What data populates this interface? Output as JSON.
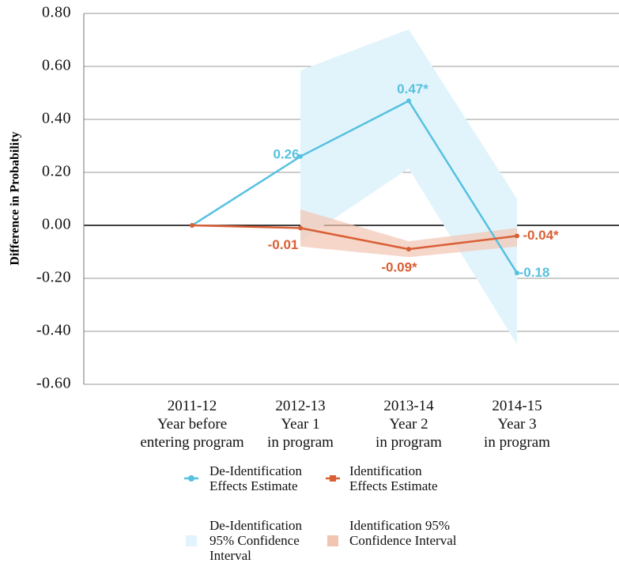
{
  "chart_data": {
    "type": "line",
    "y_label": "Difference in Probability",
    "categories": [
      [
        "2011-12",
        "Year before",
        "entering program"
      ],
      [
        "2012-13",
        "Year 1",
        "in program"
      ],
      [
        "2013-14",
        "Year 2",
        "in program"
      ],
      [
        "2014-15",
        "Year 3",
        "in program"
      ]
    ],
    "ylim": [
      -0.6,
      0.8
    ],
    "yticks": [
      {
        "value": -0.6,
        "label": "-0.60"
      },
      {
        "value": -0.4,
        "label": "-0.40"
      },
      {
        "value": -0.2,
        "label": "-0.20"
      },
      {
        "value": 0,
        "label": "0.00"
      },
      {
        "value": 0.2,
        "label": "0.20"
      },
      {
        "value": 0.4,
        "label": "0.40"
      },
      {
        "value": 0.6,
        "label": "0.60"
      },
      {
        "value": 0.8,
        "label": "0.80"
      }
    ],
    "grid": true,
    "bands": [
      {
        "name": "De-Identification 95% Confidence Interval",
        "color": "#e2f4fb",
        "upper": [
          null,
          0.585,
          0.74,
          0.1
        ],
        "lower": [
          null,
          -0.06,
          0.215,
          -0.45
        ]
      },
      {
        "name": "Identification 95% Confidence Interval",
        "color": "#f2c4b2",
        "upper": [
          null,
          0.06,
          -0.06,
          -0.01
        ],
        "lower": [
          null,
          -0.08,
          -0.12,
          -0.08
        ]
      }
    ],
    "series": [
      {
        "name": "De-Identification Effects Estimate",
        "color": "#56c1e0",
        "values": [
          0,
          0.26,
          0.47,
          -0.18
        ],
        "value_labels": [
          null,
          "0.26",
          "0.47*",
          "-0.18"
        ]
      },
      {
        "name": "Identification Effects Estimate",
        "color": "#d95f35",
        "values": [
          0,
          -0.01,
          -0.09,
          -0.04
        ],
        "value_labels": [
          null,
          "-0.01",
          "-0.09*",
          "-0.04*"
        ]
      }
    ]
  }
}
